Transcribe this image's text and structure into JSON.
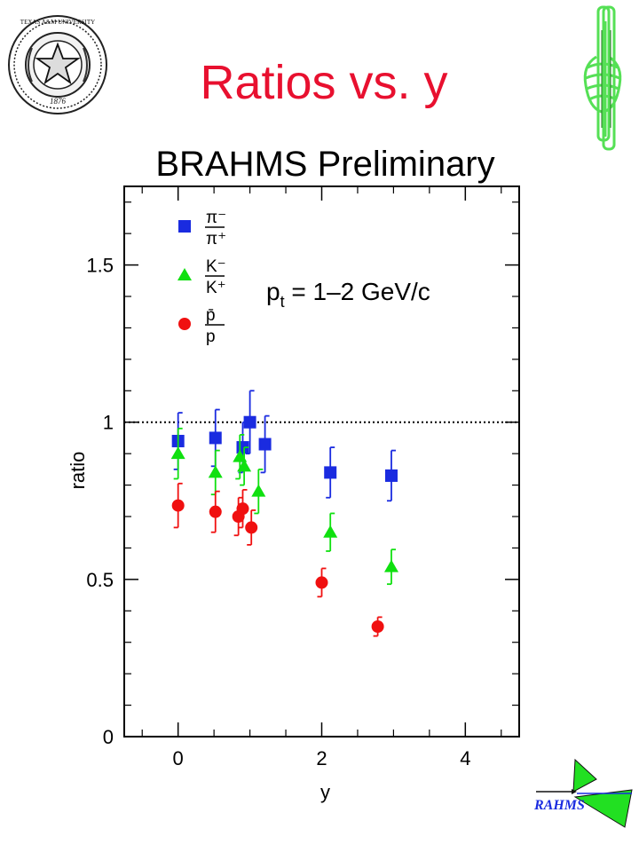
{
  "slide": {
    "title": "Ratios vs. y",
    "title_color": "#e8102f",
    "seal": {
      "top_text": "TEXAS A&M UNIVERSITY",
      "year": "1876"
    },
    "logo_text": "RAHMS"
  },
  "chart_data": {
    "type": "scatter",
    "title": "BRAHMS Preliminary",
    "xlabel": "y",
    "ylabel": "ratio",
    "xlim": [
      -0.75,
      4.75
    ],
    "ylim": [
      0,
      1.75
    ],
    "xticks": [
      0,
      2,
      4
    ],
    "yticks": [
      0,
      0.5,
      1,
      1.5
    ],
    "xtick_labels": [
      "0",
      "2",
      "4"
    ],
    "ytick_labels": [
      "0",
      "0.5",
      "1",
      "1.5"
    ],
    "reference_line": 1,
    "annotation": {
      "main": "p",
      "sub": "t",
      "rest": " = 1–2 GeV/c"
    },
    "legend_position": "top-left",
    "series": [
      {
        "label_numerator": "π⁻",
        "label_denominator": "π⁺",
        "marker": "square",
        "color": "#1a2be0",
        "x": [
          0,
          0.52,
          0.9,
          1.0,
          1.21,
          2.12,
          2.97
        ],
        "y": [
          0.94,
          0.95,
          0.92,
          1.0,
          0.93,
          0.84,
          0.83
        ],
        "err": [
          0.09,
          0.09,
          0.08,
          0.1,
          0.09,
          0.08,
          0.08
        ]
      },
      {
        "label_numerator": "K⁻",
        "label_denominator": "K⁺",
        "marker": "triangle",
        "color": "#10e010",
        "x": [
          0,
          0.52,
          0.86,
          0.92,
          1.12,
          2.12,
          2.97
        ],
        "y": [
          0.9,
          0.84,
          0.89,
          0.86,
          0.78,
          0.65,
          0.54
        ],
        "err": [
          0.08,
          0.07,
          0.07,
          0.06,
          0.07,
          0.06,
          0.055
        ]
      },
      {
        "label_numerator": "p̄",
        "label_denominator": "p",
        "marker": "circle",
        "color": "#f01010",
        "x": [
          0,
          0.52,
          0.84,
          0.9,
          1.02,
          2.0,
          2.78
        ],
        "y": [
          0.735,
          0.715,
          0.7,
          0.725,
          0.665,
          0.49,
          0.35
        ],
        "err": [
          0.07,
          0.065,
          0.06,
          0.06,
          0.055,
          0.045,
          0.03
        ]
      }
    ]
  }
}
